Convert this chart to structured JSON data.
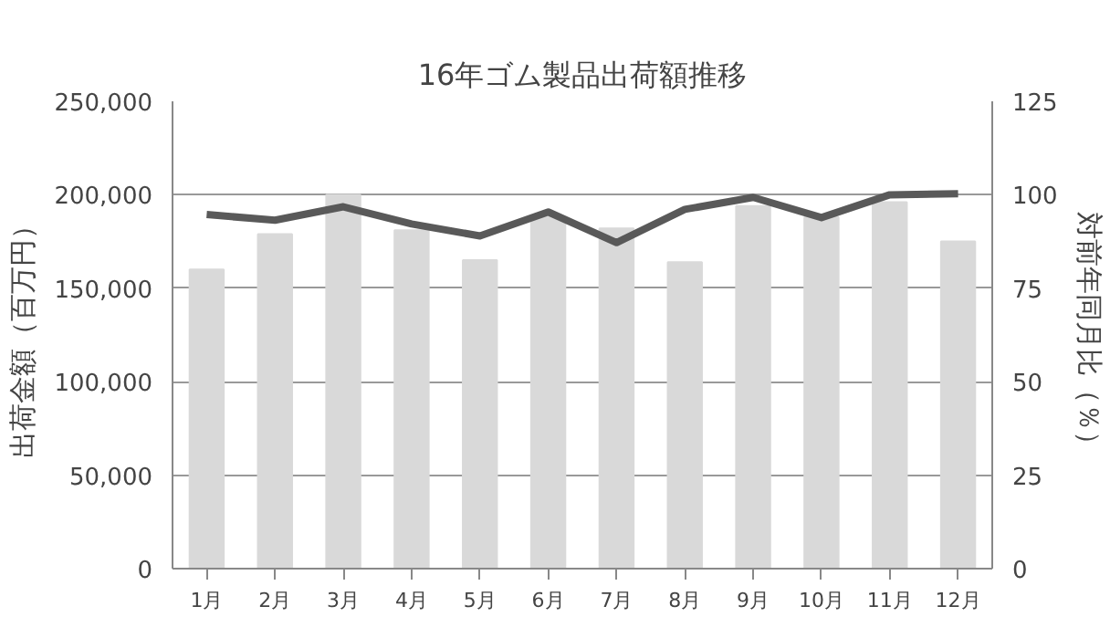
{
  "chart_data": {
    "type": "bar",
    "title": "16年ゴム製品出荷額推移",
    "ylabel": "出荷金額（百万円）",
    "y2label": "対前年同月比（％）",
    "categories": [
      "1月",
      "2月",
      "3月",
      "4月",
      "5月",
      "6月",
      "7月",
      "8月",
      "9月",
      "10月",
      "11月",
      "12月"
    ],
    "series": [
      {
        "color": "#d9d9d9",
        "values": [
          160000,
          179000,
          200000,
          181000,
          165000,
          188000,
          182000,
          164000,
          194000,
          188000,
          196000,
          175000
        ]
      },
      {
        "type": "line",
        "axis": "y2",
        "color": "#595959",
        "values": [
          94.7,
          93.2,
          96.8,
          92.2,
          89.0,
          95.4,
          87.2,
          96.1,
          99.3,
          93.9,
          100.0,
          100.3
        ]
      }
    ],
    "ylim": [
      0,
      250000
    ],
    "yticks": [
      {
        "value": 0,
        "label": "0"
      },
      {
        "value": 50000,
        "label": "50,000"
      },
      {
        "value": 100000,
        "label": "100,000"
      },
      {
        "value": 150000,
        "label": "150,000"
      },
      {
        "value": 200000,
        "label": "200,000"
      },
      {
        "value": 250000,
        "label": "250,000"
      }
    ],
    "y2lim": [
      0,
      125
    ],
    "y2ticks": [
      0,
      25,
      50,
      75,
      100,
      125
    ],
    "grid": "y",
    "marker": "none",
    "line_style": "solid"
  }
}
